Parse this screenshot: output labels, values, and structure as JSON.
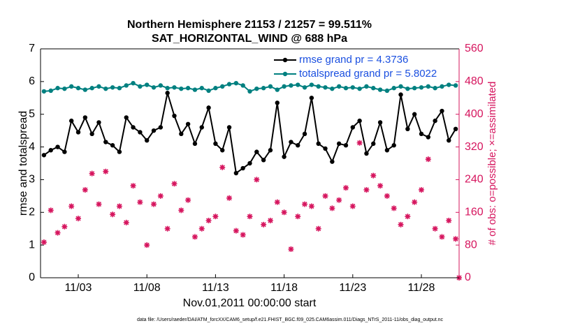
{
  "chart_data": {
    "type": "line",
    "title": "Northern Hemisphere 21153 / 21257 = 99.511%",
    "subtitle": "SAT_HORIZONTAL_WIND @ 688 hPa",
    "xlabel": "Nov.01,2011 00:00:00 start",
    "ylabel": "rmse and totalspread",
    "y2label": "# of obs: o=possible; ×=assimilated",
    "footnote": "data file: /Users/raeder/DAI/ATM_forcXX/CAM6_setup/f.e21.FHIST_BGC.f09_025.CAM6assim.011/Diags_NTrS_2011-11/obs_diag_output.nc",
    "xlim": [
      0.25,
      30.75
    ],
    "xticks": [
      {
        "value": 3,
        "label": "11/03"
      },
      {
        "value": 8,
        "label": "11/08"
      },
      {
        "value": 13,
        "label": "11/13"
      },
      {
        "value": 18,
        "label": "11/18"
      },
      {
        "value": 23,
        "label": "11/23"
      },
      {
        "value": 28,
        "label": "11/28"
      }
    ],
    "ylim": [
      0,
      7
    ],
    "yticks": [
      0,
      1,
      2,
      3,
      4,
      5,
      6,
      7
    ],
    "y2lim": [
      0,
      560
    ],
    "y2ticks": [
      0,
      80,
      160,
      240,
      320,
      400,
      480,
      560
    ],
    "legend": "upper right",
    "x": [
      0.5,
      1,
      1.5,
      2,
      2.5,
      3,
      3.5,
      4,
      4.5,
      5,
      5.5,
      6,
      6.5,
      7,
      7.5,
      8,
      8.5,
      9,
      9.5,
      10,
      10.5,
      11,
      11.5,
      12,
      12.5,
      13,
      13.5,
      14,
      14.5,
      15,
      15.5,
      16,
      16.5,
      17,
      17.5,
      18,
      18.5,
      19,
      19.5,
      20,
      20.5,
      21,
      21.5,
      22,
      22.5,
      23,
      23.5,
      24,
      24.5,
      25,
      25.5,
      26,
      26.5,
      27,
      27.5,
      28,
      28.5,
      29,
      29.5,
      30,
      30.5,
      30.75
    ],
    "series": [
      {
        "name": "rmse grand pr = 4.3736",
        "color": "#000000",
        "marker": "circle",
        "values": [
          3.75,
          3.9,
          4.0,
          3.85,
          4.8,
          4.45,
          4.9,
          4.4,
          4.75,
          4.15,
          4.05,
          3.85,
          4.9,
          4.6,
          4.45,
          4.2,
          4.5,
          4.6,
          5.65,
          4.95,
          4.4,
          4.7,
          4.1,
          4.6,
          5.2,
          4.1,
          3.9,
          4.6,
          3.2,
          3.35,
          3.5,
          3.85,
          3.6,
          3.9,
          5.35,
          3.7,
          4.15,
          4.05,
          4.4,
          5.5,
          4.1,
          3.95,
          3.55,
          4.1,
          4.05,
          4.6,
          4.8,
          3.8,
          4.1,
          4.75,
          3.9,
          4.05,
          5.6,
          4.55,
          5.0,
          4.4,
          4.3,
          4.8,
          5.1,
          4.2,
          4.55,
          null
        ]
      },
      {
        "name": "totalspread grand pr = 5.8022",
        "color": "#008080",
        "marker": "circle",
        "values": [
          5.7,
          5.72,
          5.8,
          5.78,
          5.85,
          5.8,
          5.75,
          5.8,
          5.85,
          5.78,
          5.82,
          5.8,
          5.88,
          5.95,
          5.85,
          5.9,
          5.82,
          5.88,
          5.8,
          5.82,
          5.78,
          5.8,
          5.75,
          5.8,
          5.72,
          5.8,
          5.85,
          5.92,
          5.95,
          5.88,
          5.7,
          5.78,
          5.8,
          5.85,
          5.75,
          5.85,
          5.88,
          5.9,
          5.82,
          5.9,
          5.85,
          5.82,
          5.78,
          5.85,
          5.8,
          5.82,
          5.78,
          5.85,
          5.8,
          5.75,
          5.72,
          5.8,
          5.85,
          5.78,
          5.8,
          5.82,
          5.85,
          5.8,
          5.85,
          5.9,
          5.88,
          null
        ]
      },
      {
        "color": "#d6155e",
        "marker": "star",
        "axis": "y2",
        "values": [
          87,
          165,
          110,
          125,
          175,
          145,
          215,
          255,
          180,
          260,
          155,
          175,
          135,
          225,
          185,
          80,
          180,
          200,
          120,
          230,
          165,
          190,
          100,
          120,
          140,
          150,
          270,
          195,
          115,
          105,
          150,
          240,
          130,
          140,
          185,
          160,
          70,
          150,
          180,
          175,
          120,
          200,
          170,
          190,
          220,
          175,
          330,
          215,
          250,
          225,
          200,
          170,
          130,
          150,
          185,
          215,
          290,
          120,
          100,
          140,
          95,
          0
        ]
      }
    ]
  }
}
